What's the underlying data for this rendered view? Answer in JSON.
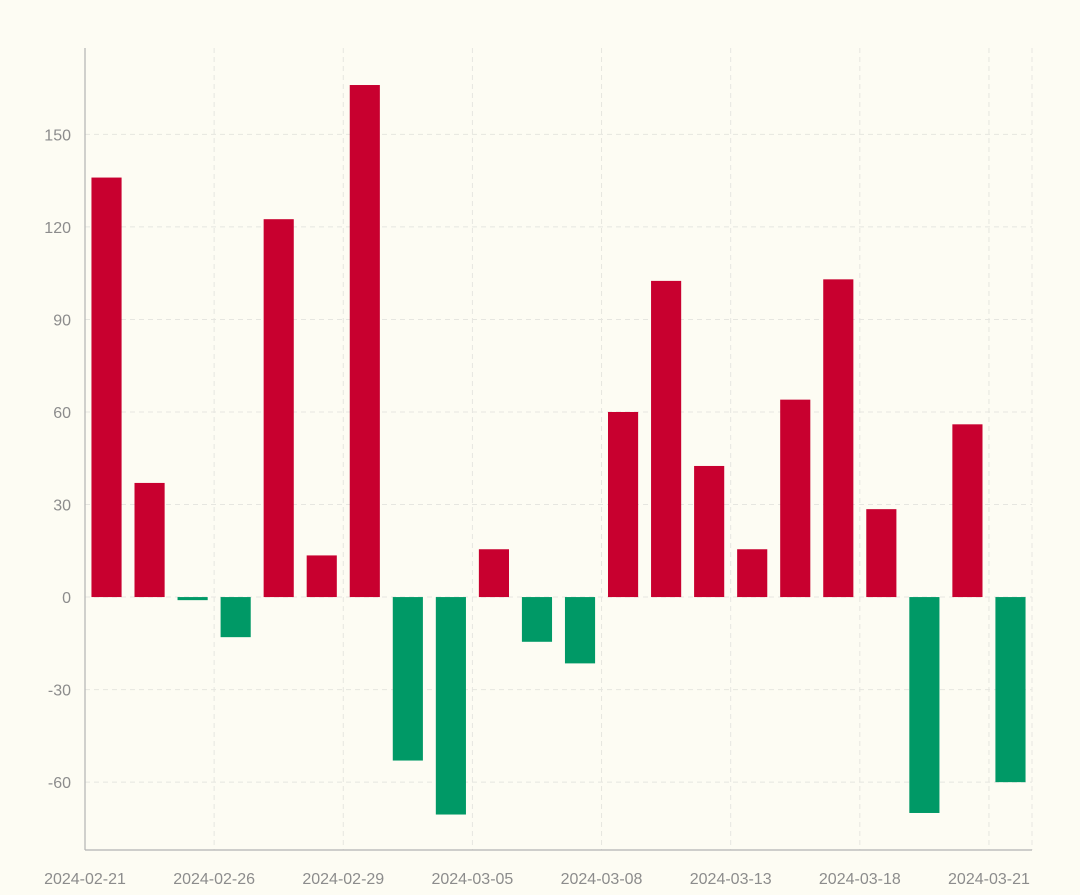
{
  "chart_data": {
    "type": "bar",
    "title": "",
    "xlabel": "",
    "ylabel": "",
    "categories": [
      "2024-02-21",
      "2024-02-22",
      "2024-02-23",
      "2024-02-26",
      "2024-02-27",
      "2024-02-28",
      "2024-02-29",
      "2024-03-01",
      "2024-03-04",
      "2024-03-05",
      "2024-03-06",
      "2024-03-07",
      "2024-03-08",
      "2024-03-11",
      "2024-03-12",
      "2024-03-13",
      "2024-03-14",
      "2024-03-15",
      "2024-03-18",
      "2024-03-19",
      "2024-03-20",
      "2024-03-21"
    ],
    "x_tick_labels": [
      "2024-02-21",
      "2024-02-26",
      "2024-02-29",
      "2024-03-05",
      "2024-03-08",
      "2024-03-13",
      "2024-03-18",
      "2024-03-21"
    ],
    "values": [
      136,
      37,
      -1,
      -13,
      122.5,
      13.5,
      166,
      -53,
      -70.5,
      15.5,
      -14.5,
      -21.5,
      60,
      102.5,
      42.5,
      15.5,
      64,
      103,
      28.5,
      -70,
      56,
      -60
    ],
    "ylim": [
      -82,
      178
    ],
    "yticks": [
      -60,
      -30,
      0,
      30,
      60,
      90,
      120,
      150
    ],
    "y_tick_labels": [
      "-60",
      "-30",
      "0",
      "30",
      "60",
      "90",
      "120",
      "150"
    ],
    "grid": true,
    "legend": "none",
    "colors": {
      "positive": "#c8002f",
      "negative": "#009966"
    }
  }
}
